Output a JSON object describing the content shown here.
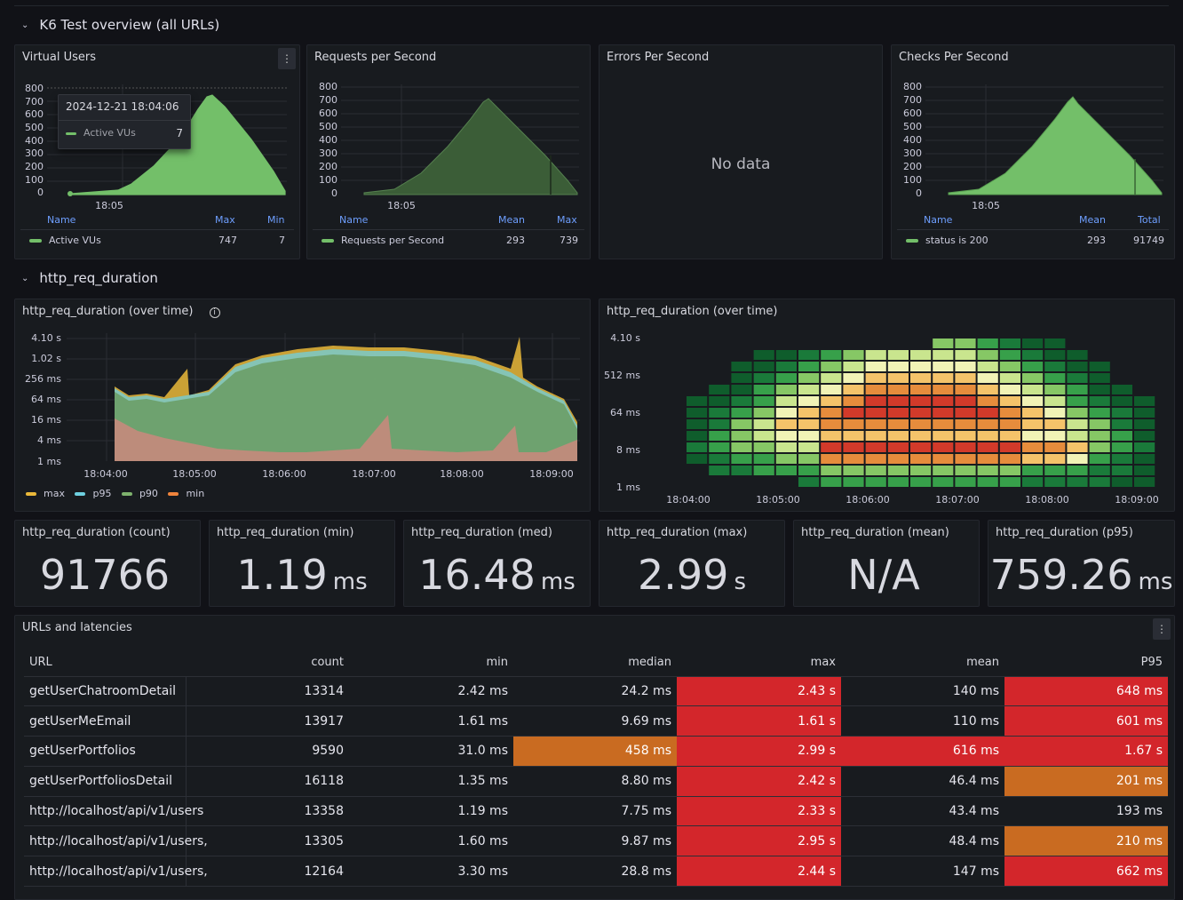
{
  "rows": {
    "overview": "K6 Test overview (all URLs)",
    "duration": "http_req_duration"
  },
  "vu": {
    "title": "Virtual Users",
    "yticks": [
      "800",
      "700",
      "600",
      "500",
      "400",
      "300",
      "200",
      "100",
      "0"
    ],
    "xtick": "18:05",
    "legend_headers": [
      "Name",
      "Max",
      "Min"
    ],
    "legend_row": {
      "name": "Active VUs",
      "max": "747",
      "min": "7"
    },
    "tooltip": {
      "time": "2024-12-21 18:04:06",
      "label": "Active VUs",
      "value": "7"
    }
  },
  "rps": {
    "title": "Requests per Second",
    "yticks": [
      "800",
      "700",
      "600",
      "500",
      "400",
      "300",
      "200",
      "100",
      "0"
    ],
    "xtick": "18:05",
    "legend_headers": [
      "Name",
      "Mean",
      "Max"
    ],
    "legend_row": {
      "name": "Requests per Second",
      "mean": "293",
      "max": "739"
    }
  },
  "eps": {
    "title": "Errors Per Second",
    "empty": "No data"
  },
  "cps": {
    "title": "Checks Per Second",
    "yticks": [
      "800",
      "700",
      "600",
      "500",
      "400",
      "300",
      "200",
      "100",
      "0"
    ],
    "xtick": "18:05",
    "legend_headers": [
      "Name",
      "Mean",
      "Total"
    ],
    "legend_row": {
      "name": "status is 200",
      "mean": "293",
      "total": "91749"
    }
  },
  "dur_ts": {
    "title": "http_req_duration (over time)",
    "yticks": [
      "4.10 s",
      "1.02 s",
      "256 ms",
      "64 ms",
      "16 ms",
      "4 ms",
      "1 ms"
    ],
    "xticks": [
      "18:04:00",
      "18:05:00",
      "18:06:00",
      "18:07:00",
      "18:08:00",
      "18:09:00"
    ],
    "legend": [
      {
        "name": "max",
        "color": "#eab839"
      },
      {
        "name": "p95",
        "color": "#6ed0e0"
      },
      {
        "name": "p90",
        "color": "#7eb26d"
      },
      {
        "name": "min",
        "color": "#ef843c"
      }
    ]
  },
  "dur_hm": {
    "title": "http_req_duration (over time)",
    "yticks": [
      "4.10 s",
      "512 ms",
      "64 ms",
      "8 ms",
      "1 ms"
    ],
    "xticks": [
      "18:04:00",
      "18:05:00",
      "18:06:00",
      "18:07:00",
      "18:08:00",
      "18:09:00"
    ]
  },
  "stats": [
    {
      "title": "http_req_duration (count)",
      "value": "91766",
      "unit": ""
    },
    {
      "title": "http_req_duration (min)",
      "value": "1.19",
      "unit": "ms"
    },
    {
      "title": "http_req_duration (med)",
      "value": "16.48",
      "unit": "ms"
    },
    {
      "title": "http_req_duration (max)",
      "value": "2.99",
      "unit": "s"
    },
    {
      "title": "http_req_duration (mean)",
      "value": "N/A",
      "unit": ""
    },
    {
      "title": "http_req_duration (p95)",
      "value": "759.26",
      "unit": "ms"
    }
  ],
  "table": {
    "title": "URLs and latencies",
    "headers": [
      "URL",
      "count",
      "min",
      "median",
      "max",
      "mean",
      "P95"
    ],
    "rows": [
      {
        "url": "getUserChatroomDetail",
        "count": "13314",
        "min": "2.42 ms",
        "median": "24.2 ms",
        "max": "2.43 s",
        "mean": "140 ms",
        "p95": "648 ms"
      },
      {
        "url": "getUserMeEmail",
        "count": "13917",
        "min": "1.61 ms",
        "median": "9.69 ms",
        "max": "1.61 s",
        "mean": "110 ms",
        "p95": "601 ms"
      },
      {
        "url": "getUserPortfolios",
        "count": "9590",
        "min": "31.0 ms",
        "median": "458 ms",
        "max": "2.99 s",
        "mean": "616 ms",
        "p95": "1.67 s"
      },
      {
        "url": "getUserPortfoliosDetail",
        "count": "16118",
        "min": "1.35 ms",
        "median": "8.80 ms",
        "max": "2.42 s",
        "mean": "46.4 ms",
        "p95": "201 ms"
      },
      {
        "url": "http://localhost/api/v1/users",
        "count": "13358",
        "min": "1.19 ms",
        "median": "7.75 ms",
        "max": "2.33 s",
        "mean": "43.4 ms",
        "p95": "193 ms"
      },
      {
        "url": "http://localhost/api/v1/users,",
        "count": "13305",
        "min": "1.60 ms",
        "median": "9.87 ms",
        "max": "2.95 s",
        "mean": "48.4 ms",
        "p95": "210 ms"
      },
      {
        "url": "http://localhost/api/v1/users,",
        "count": "12164",
        "min": "3.30 ms",
        "median": "28.8 ms",
        "max": "2.44 s",
        "mean": "147 ms",
        "p95": "662 ms"
      }
    ],
    "cell_colors": {
      "median": [
        null,
        null,
        "orange",
        null,
        null,
        null,
        null
      ],
      "max": [
        "red",
        "red",
        "red",
        "red",
        "red",
        "red",
        "red"
      ],
      "mean": [
        null,
        null,
        "red",
        null,
        null,
        null,
        null
      ],
      "p95": [
        "red",
        "red",
        "red",
        "orange",
        null,
        "orange",
        "red"
      ]
    },
    "colors": {
      "red": "#d3262b",
      "orange": "#c96b21"
    }
  }
}
